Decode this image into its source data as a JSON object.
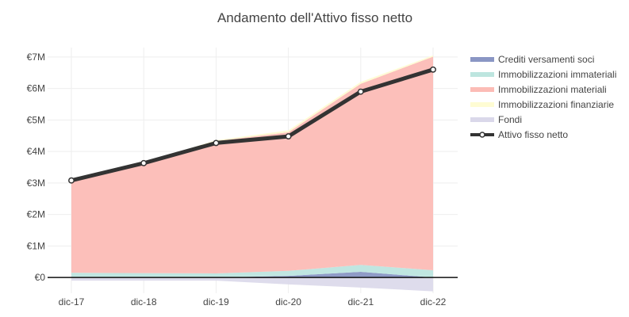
{
  "chart_data": {
    "type": "area",
    "title": "Andamento dell'Attivo fisso netto",
    "xlabel": "",
    "ylabel": "",
    "categories": [
      "dic-17",
      "dic-18",
      "dic-19",
      "dic-20",
      "dic-21",
      "dic-22"
    ],
    "y_ticks": [
      "€0",
      "€1M",
      "€2M",
      "€3M",
      "€4M",
      "€5M",
      "€6M",
      "€7M"
    ],
    "y_tick_values": [
      0,
      1000000,
      2000000,
      3000000,
      4000000,
      5000000,
      6000000,
      7000000
    ],
    "ylim": [
      -500000,
      7300000
    ],
    "grid": true,
    "legend_position": "right",
    "series": [
      {
        "name": "Crediti versamenti soci",
        "kind": "stacked-area",
        "color": "#8a96c4",
        "values": [
          0,
          0,
          0,
          50000,
          180000,
          0
        ]
      },
      {
        "name": "Immobilizzazioni immateriali",
        "kind": "stacked-area",
        "color": "#bde5df",
        "values": [
          150000,
          140000,
          130000,
          160000,
          220000,
          230000
        ]
      },
      {
        "name": "Immobilizzazioni materiali",
        "kind": "stacked-area",
        "color": "#fcbcb6",
        "values": [
          2950000,
          3500000,
          4200000,
          4400000,
          5750000,
          6780000
        ]
      },
      {
        "name": "Immobilizzazioni finanziarie",
        "kind": "stacked-area",
        "color": "#fefcd3",
        "values": [
          10000,
          10000,
          30000,
          60000,
          60000,
          40000
        ]
      },
      {
        "name": "Fondi",
        "kind": "negative-area",
        "color": "#dad8ea",
        "values": [
          -100000,
          -100000,
          -100000,
          -220000,
          -320000,
          -440000
        ]
      },
      {
        "name": "Attivo fisso netto",
        "kind": "line",
        "color": "#333333",
        "values": [
          3080000,
          3630000,
          4270000,
          4480000,
          5900000,
          6600000
        ]
      }
    ]
  }
}
